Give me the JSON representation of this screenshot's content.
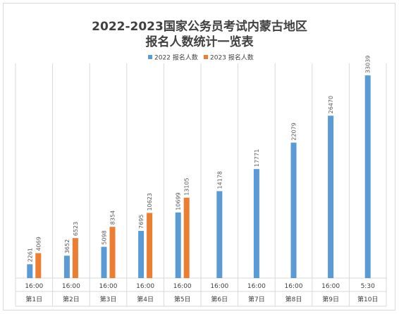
{
  "chart_data": {
    "type": "bar",
    "title_line1": "2022-2023国家公务员考试内蒙古地区",
    "title_line2": "报名人数统计一览表",
    "categories": [
      {
        "time": "16:00",
        "day": "第1日"
      },
      {
        "time": "16:00",
        "day": "第2日"
      },
      {
        "time": "16:00",
        "day": "第3日"
      },
      {
        "time": "16:00",
        "day": "第4日"
      },
      {
        "time": "16:00",
        "day": "第5日"
      },
      {
        "time": "16:00",
        "day": "第6日"
      },
      {
        "time": "16:00",
        "day": "第7日"
      },
      {
        "time": "16:00",
        "day": "第8日"
      },
      {
        "time": "16:00",
        "day": "第9日"
      },
      {
        "time": "5:30",
        "day": "第10日"
      }
    ],
    "series": [
      {
        "name": "2022 报名人数",
        "color": "#5b9bd5",
        "values": [
          2261,
          3652,
          5098,
          7695,
          10699,
          14178,
          17771,
          22079,
          26470,
          33039
        ]
      },
      {
        "name": "2023 报名人数",
        "color": "#ed7d31",
        "values": [
          4069,
          6523,
          8354,
          10623,
          13105,
          null,
          null,
          null,
          null,
          null
        ]
      }
    ],
    "ylim": [
      0,
      35000
    ],
    "legend_position": "top",
    "grid": "vertical category separators"
  }
}
